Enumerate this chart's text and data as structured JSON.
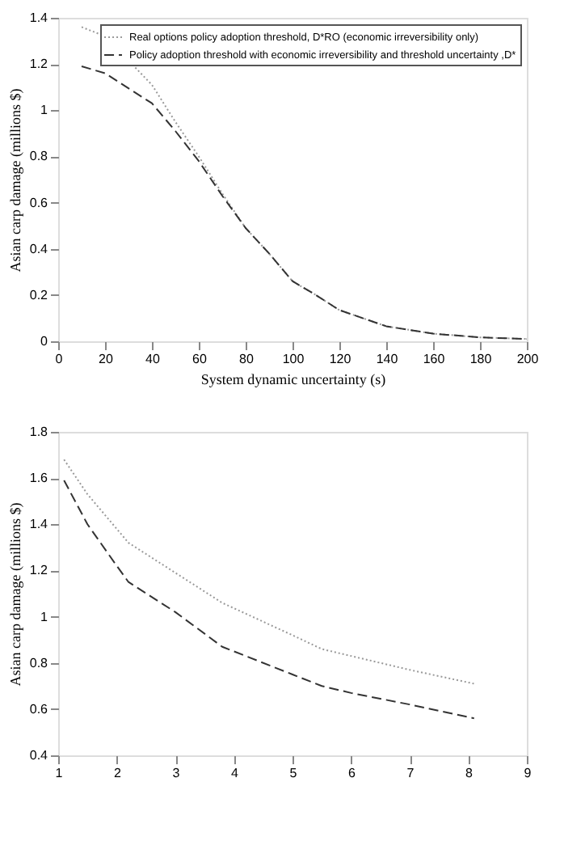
{
  "chart_data": [
    {
      "type": "line",
      "xlabel": "System dynamic uncertainty (s)",
      "ylabel": "Asian carp damage (millions $)",
      "xlim": [
        0,
        200
      ],
      "xticks": [
        0,
        20,
        40,
        60,
        80,
        100,
        120,
        140,
        160,
        180,
        200
      ],
      "ylim": [
        0,
        1.4
      ],
      "yticks": [
        0,
        0.2,
        0.4,
        0.6,
        0.8,
        1,
        1.2,
        1.4
      ],
      "grid": false,
      "legend": "top right",
      "marker": "none",
      "series": [
        {
          "name": "Real options policy adoption threshold, D*RO (economic irreversibility only)",
          "color": "#999999",
          "line_style": "dotted",
          "x": [
            10,
            20,
            40,
            50,
            60,
            70,
            80,
            90,
            100,
            110,
            120,
            140,
            160,
            180,
            200
          ],
          "values": [
            1.36,
            1.32,
            1.11,
            0.95,
            0.8,
            0.64,
            0.49,
            0.38,
            0.26,
            0.2,
            0.135,
            0.065,
            0.033,
            0.017,
            0.01
          ]
        },
        {
          "name": "Policy adoption threshold with economic irreversibility and threshold uncertainty ,D*",
          "color": "#333333",
          "line_style": "dashed",
          "x": [
            10,
            20,
            40,
            50,
            60,
            70,
            80,
            90,
            100,
            110,
            120,
            140,
            160,
            180,
            200
          ],
          "values": [
            1.19,
            1.16,
            1.03,
            0.91,
            0.78,
            0.63,
            0.49,
            0.38,
            0.26,
            0.2,
            0.135,
            0.065,
            0.033,
            0.017,
            0.01
          ]
        }
      ]
    },
    {
      "type": "line",
      "ylabel": "Asian carp damage (millions $)",
      "xlim": [
        1,
        9
      ],
      "xticks": [
        1,
        2,
        3,
        4,
        5,
        6,
        7,
        8,
        9
      ],
      "ylim": [
        0.4,
        1.8
      ],
      "yticks": [
        0.4,
        0.6,
        0.8,
        1,
        1.2,
        1.4,
        1.6,
        1.8
      ],
      "grid": false,
      "legend": "top right",
      "marker": "none",
      "series": [
        {
          "name": "Real options policy adoption threshold, D*RO (economic irreversibility only)",
          "color": "#999999",
          "line_style": "dotted",
          "x": [
            1.1,
            1.5,
            2.2,
            3,
            3.8,
            5,
            5.5,
            6,
            7,
            8.1
          ],
          "values": [
            1.68,
            1.53,
            1.32,
            1.19,
            1.06,
            0.92,
            0.86,
            0.83,
            0.77,
            0.71
          ]
        },
        {
          "name": "Policy adoption threshold with economic irreversibility and threshold uncertainty ,D*",
          "color": "#333333",
          "line_style": "dashed",
          "x": [
            1.1,
            1.5,
            2,
            2.2,
            3,
            3.8,
            5,
            5.5,
            6,
            7,
            8.1
          ],
          "values": [
            1.59,
            1.4,
            1.22,
            1.15,
            1.02,
            0.87,
            0.75,
            0.7,
            0.67,
            0.62,
            0.56
          ]
        }
      ]
    }
  ]
}
